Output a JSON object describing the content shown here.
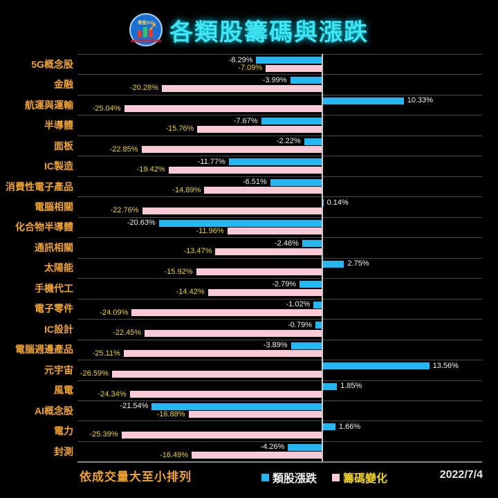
{
  "header": {
    "title": "各類股籌碼與漲跌",
    "logo_text": "資股GO"
  },
  "chart_data": {
    "type": "bar",
    "orientation": "horizontal",
    "title": "各類股籌碼與漲跌",
    "value_suffix": "%",
    "xlim": [
      -31,
      20.4
    ],
    "grid": "row-dividers",
    "zero_axis": true,
    "sort_note": "依成交量大至小排列",
    "categories": [
      "5G概念股",
      "金融",
      "航運與運輸",
      "半導體",
      "面板",
      "IC製造",
      "消費性電子產品",
      "電腦相關",
      "化合物半導體",
      "通訊相關",
      "太陽能",
      "手機代工",
      "電子零件",
      "IC設計",
      "電腦週邊產品",
      "元宇宙",
      "風電",
      "AI概念股",
      "電力",
      "封測"
    ],
    "series": [
      {
        "name": "類股漲跌",
        "color": "#24b7f2",
        "label_color": "#f0f0f0",
        "values": [
          -8.29,
          -3.99,
          10.33,
          -7.67,
          -2.22,
          -11.77,
          -6.51,
          0.14,
          -20.63,
          -2.46,
          2.75,
          -2.79,
          -1.02,
          -0.79,
          -3.89,
          13.56,
          1.85,
          -21.54,
          1.66,
          -4.26
        ]
      },
      {
        "name": "籌碼變化",
        "color": "#f8cad6",
        "label_color": "#eed32b",
        "values": [
          -7.09,
          -20.28,
          -25.04,
          -15.76,
          -22.85,
          -19.42,
          -14.89,
          -22.76,
          -11.96,
          -13.47,
          -15.92,
          -14.42,
          -24.09,
          -22.45,
          -25.11,
          -26.59,
          -24.34,
          -16.88,
          -25.39,
          -16.49
        ]
      }
    ],
    "category_label_color": "#f0a433"
  },
  "footer": {
    "note": "依成交量大至小排列",
    "legend": [
      {
        "label": "類股漲跌",
        "color": "#24b7f2",
        "text_color": "#f0f0f0"
      },
      {
        "label": "籌碼變化",
        "color": "#f8cad6",
        "text_color": "#eed32b"
      }
    ],
    "date": "2022/7/4"
  }
}
